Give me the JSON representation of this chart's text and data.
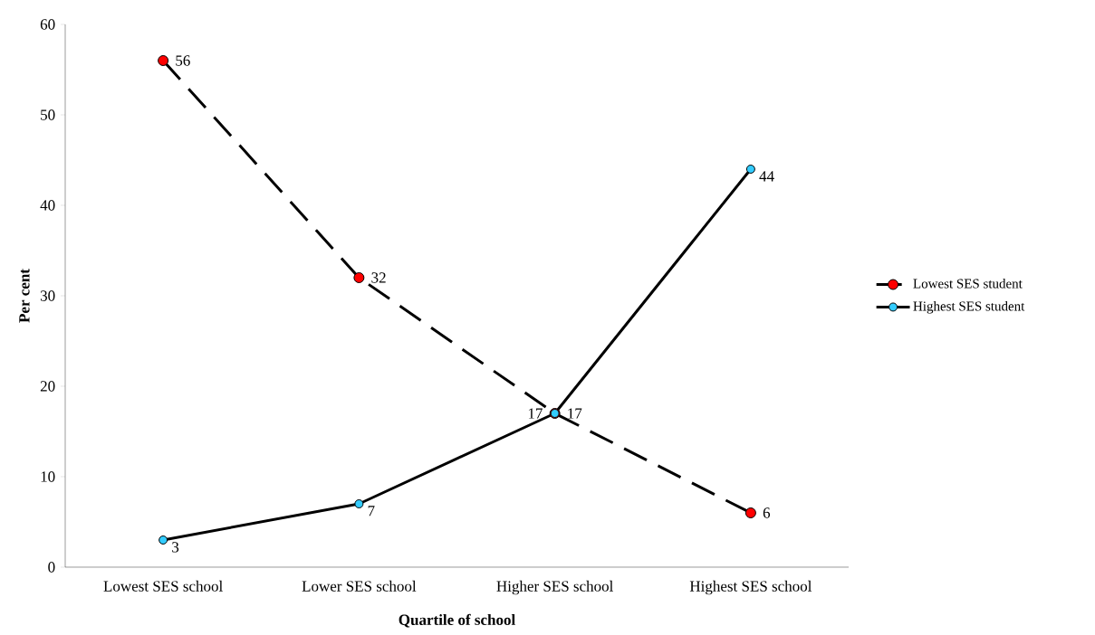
{
  "chart_data": {
    "type": "line",
    "xlabel": "Quartile of school",
    "ylabel": "Per cent",
    "categories": [
      "Lowest SES school",
      "Lower SES school",
      "Higher SES school",
      "Highest SES school"
    ],
    "series": [
      {
        "name": "Lowest SES student",
        "color": "#ff0000",
        "line_style": "dashed",
        "values": [
          56,
          32,
          17,
          6
        ]
      },
      {
        "name": "Highest SES student",
        "color": "#33ccff",
        "line_style": "solid",
        "values": [
          3,
          7,
          17,
          44
        ]
      }
    ],
    "ylim": [
      0,
      60
    ],
    "yticks": [
      0,
      10,
      20,
      30,
      40,
      50,
      60
    ],
    "marker": "circle",
    "data_labels": true,
    "legend": "right",
    "grid": false
  }
}
